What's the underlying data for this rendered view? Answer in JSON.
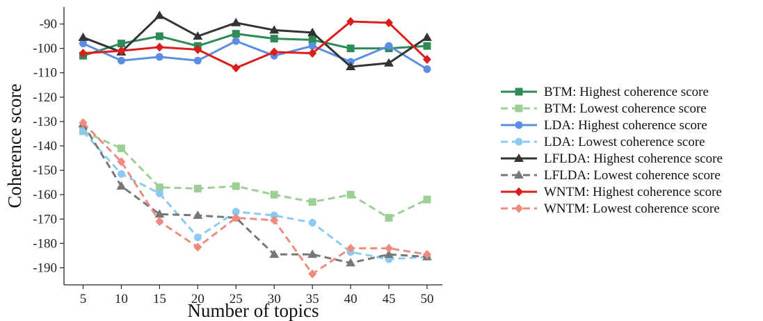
{
  "chart_data": {
    "type": "line",
    "xlabel": "Number of topics",
    "ylabel": "Coherence score",
    "x": [
      5,
      10,
      15,
      20,
      25,
      30,
      35,
      40,
      45,
      50
    ],
    "xticks": [
      "5",
      "10",
      "15",
      "20",
      "25",
      "30",
      "35",
      "40",
      "45",
      "50"
    ],
    "yticks": [
      -90,
      -100,
      -110,
      -120,
      -130,
      -140,
      -150,
      -160,
      -170,
      -180,
      -190
    ],
    "ytick_labels": [
      "-90",
      "-100",
      "-110",
      "-120",
      "-130",
      "-140",
      "-150",
      "-160",
      "-170",
      "-180",
      "-190"
    ],
    "xlim": [
      2.5,
      52
    ],
    "ylim": [
      -197,
      -83
    ],
    "grid": false,
    "legend_position": "right",
    "series": [
      {
        "name": "BTM: Highest coherence score",
        "color": "#2e8b57",
        "dash": false,
        "marker": "square",
        "values": [
          -103,
          -98,
          -95,
          -99,
          -94,
          -96,
          -96.5,
          -100,
          -100,
          -99
        ]
      },
      {
        "name": "BTM: Lowest coherence score",
        "color": "#9ccf94",
        "dash": true,
        "marker": "square",
        "values": [
          -134,
          -141,
          -157,
          -157.5,
          -156.5,
          -160,
          -163,
          -160,
          -169.5,
          -162
        ]
      },
      {
        "name": "LDA: Highest coherence score",
        "color": "#5b8ee0",
        "dash": false,
        "marker": "circle",
        "values": [
          -98,
          -105,
          -103.5,
          -105,
          -97,
          -103,
          -99,
          -105.5,
          -99,
          -108.5
        ]
      },
      {
        "name": "LDA: Lowest coherence score",
        "color": "#8ccaf2",
        "dash": true,
        "marker": "circle",
        "values": [
          -134,
          -151.5,
          -159.5,
          -177.5,
          -167,
          -168.5,
          -171.5,
          -183.5,
          -186.5,
          -185.5
        ]
      },
      {
        "name": "LFLDA: Highest coherence score",
        "color": "#333333",
        "dash": false,
        "marker": "triangle",
        "values": [
          -95.5,
          -101.5,
          -86.5,
          -95,
          -89.5,
          -92.5,
          -93.5,
          -107.5,
          -106,
          -95.5
        ]
      },
      {
        "name": "LFLDA: Lowest coherence score",
        "color": "#777777",
        "dash": true,
        "marker": "triangle",
        "values": [
          -131,
          -156.5,
          -168,
          -168.5,
          -169.5,
          -184.5,
          -184.5,
          -188,
          -184.5,
          -185.5
        ]
      },
      {
        "name": "WNTM: Highest coherence score",
        "color": "#dd1c1c",
        "dash": false,
        "marker": "diamond",
        "values": [
          -102,
          -101,
          -99.5,
          -100.5,
          -108,
          -101.5,
          -102,
          -89,
          -89.5,
          -104.5
        ]
      },
      {
        "name": "WNTM: Lowest coherence score",
        "color": "#ee8a7e",
        "dash": true,
        "marker": "diamond",
        "values": [
          -130.5,
          -146.5,
          -171,
          -181.5,
          -169.5,
          -170.5,
          -192.5,
          -182,
          -182,
          -184.5
        ]
      }
    ]
  }
}
